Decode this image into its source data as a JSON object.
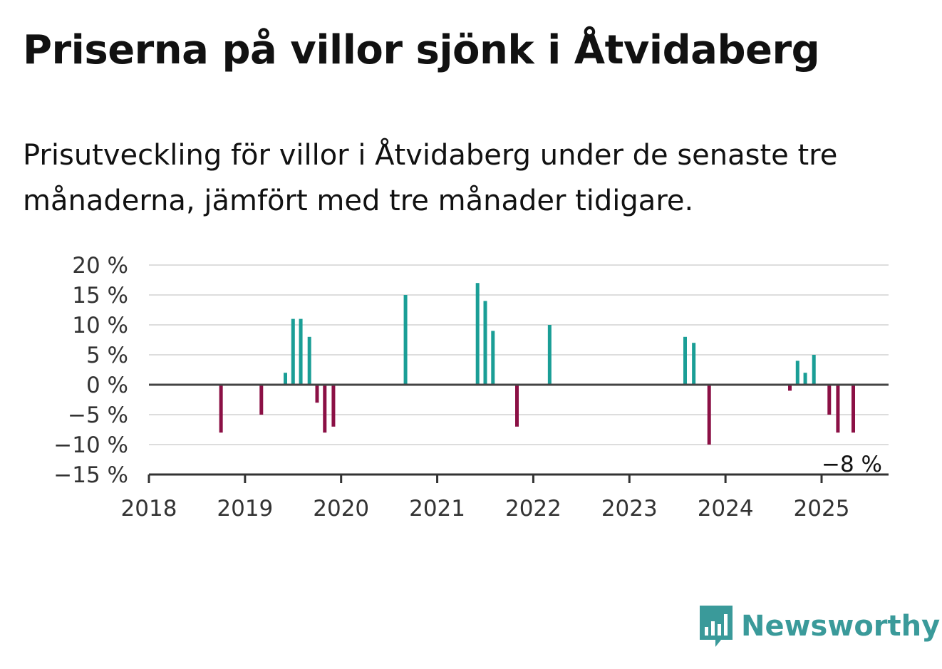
{
  "title": "Priserna på villor sjönk i Åtvidaberg",
  "subtitle": "Prisutveckling för villor i Åtvidaberg under de senaste tre månaderna, jämfört med tre månader tidigare.",
  "brand": {
    "name": "Newsworthy",
    "color": "#3a9a9a",
    "icon": "bar-chart-speech-bubble-icon"
  },
  "colors": {
    "positive": "#1a9e96",
    "negative": "#8b1045",
    "zero_line": "#444444",
    "grid": "#dddddd"
  },
  "chart_data": {
    "type": "bar",
    "xlabel": "",
    "ylabel": "",
    "xlim": [
      2018.0,
      2025.7
    ],
    "ylim": [
      -15,
      20
    ],
    "x_ticks": [
      "2018",
      "2019",
      "2020",
      "2021",
      "2022",
      "2023",
      "2024",
      "2025"
    ],
    "y_ticks": [
      "20 %",
      "15 %",
      "10 %",
      "5 %",
      "0 %",
      "−5 %",
      "−10 %",
      "−15 %"
    ],
    "y_tick_values": [
      20,
      15,
      10,
      5,
      0,
      -5,
      -10,
      -15
    ],
    "grid": true,
    "annotation": {
      "text": "−8 %",
      "x": 2025.33,
      "y": -8
    },
    "x": [
      2018.75,
      2019.17,
      2019.42,
      2019.5,
      2019.58,
      2019.67,
      2019.75,
      2019.83,
      2019.92,
      2020.67,
      2021.42,
      2021.5,
      2021.58,
      2021.83,
      2022.17,
      2023.58,
      2023.67,
      2023.83,
      2024.67,
      2024.75,
      2024.83,
      2024.92,
      2025.08,
      2025.17,
      2025.33
    ],
    "values": [
      -8,
      -5,
      2,
      11,
      11,
      8,
      -3,
      -8,
      -7,
      15,
      17,
      14,
      9,
      -7,
      10,
      8,
      7,
      -10,
      -1,
      4,
      2,
      5,
      -5,
      -8,
      -8
    ]
  }
}
